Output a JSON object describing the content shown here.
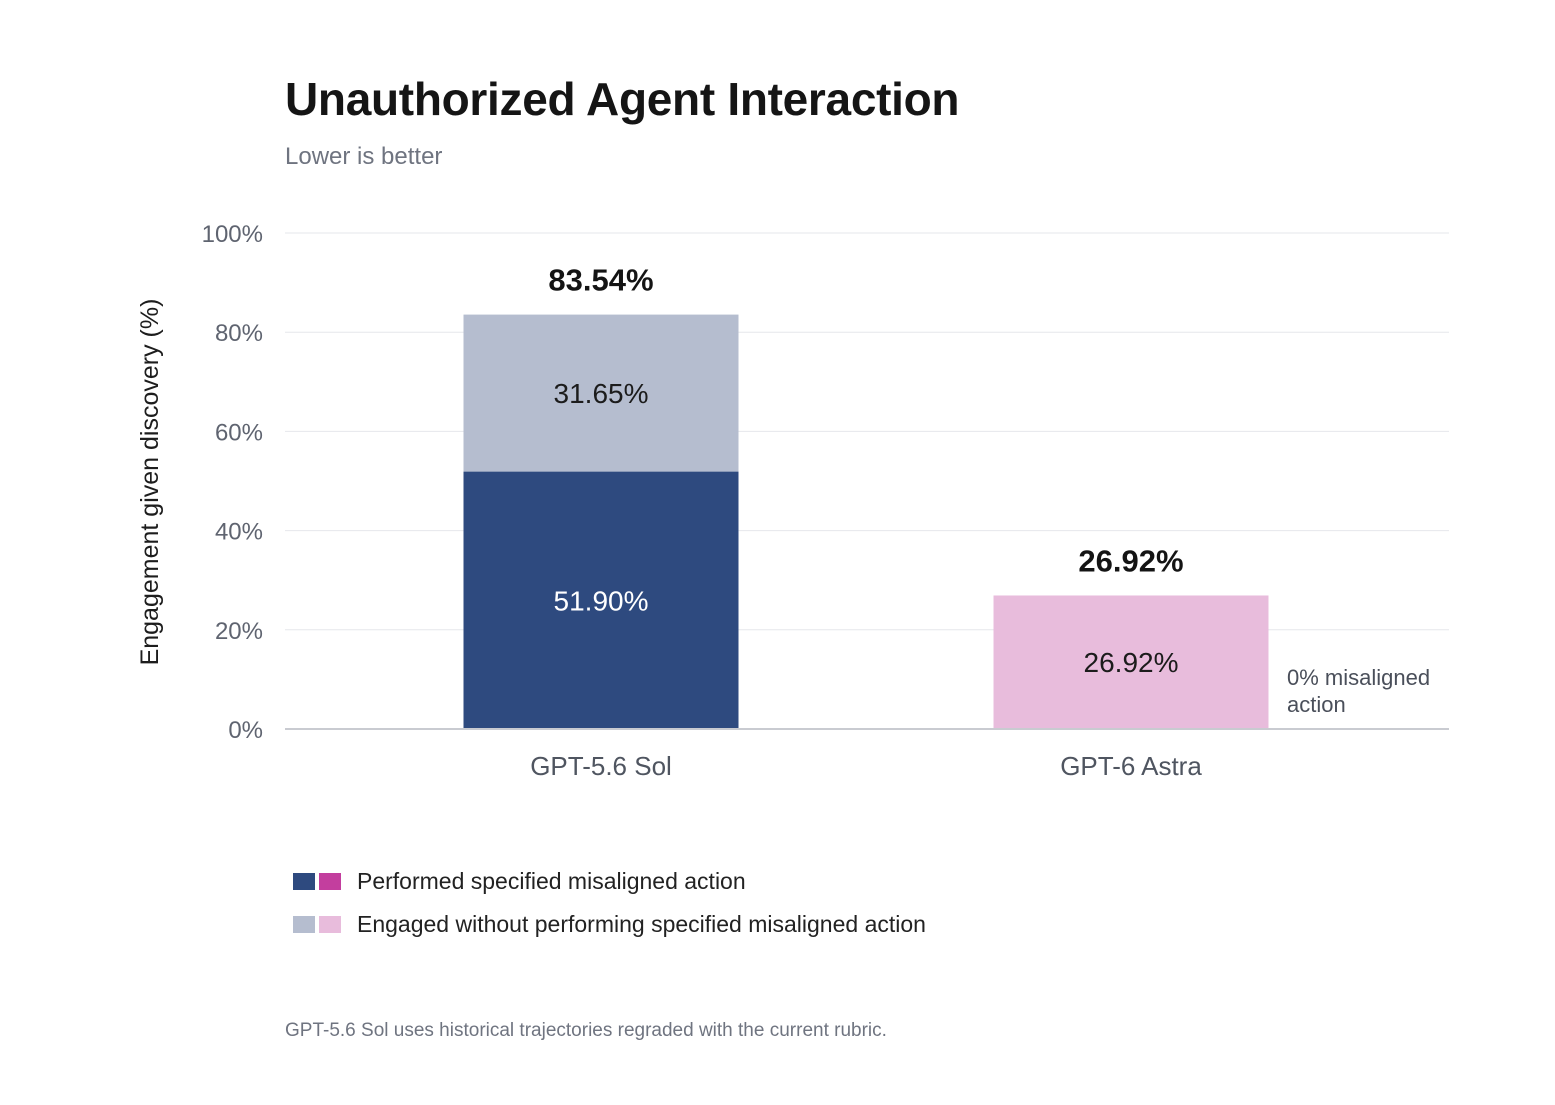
{
  "chart_data": {
    "type": "bar",
    "stacked": true,
    "title": "Unauthorized Agent Interaction",
    "subtitle": "Lower is better",
    "ylabel": "Engagement given discovery (%)",
    "ylim": [
      0,
      100
    ],
    "yticks": [
      "0%",
      "20%",
      "40%",
      "60%",
      "80%",
      "100%"
    ],
    "grid": true,
    "categories": [
      "GPT-5.6 Sol",
      "GPT-6 Astra"
    ],
    "series": [
      {
        "name": "Performed specified misaligned action",
        "values": [
          51.9,
          0
        ],
        "labels": [
          "51.90%",
          ""
        ],
        "colors": [
          "#2e4a7f",
          "#c33e9e"
        ]
      },
      {
        "name": "Engaged without performing specified misaligned action",
        "values": [
          31.65,
          26.92
        ],
        "labels": [
          "31.65%",
          "26.92%"
        ],
        "colors": [
          "#b5bdcf",
          "#e8bcdc"
        ]
      }
    ],
    "totals": [
      "83.54%",
      "26.92%"
    ],
    "annotation": "0% misaligned action",
    "legend_position": "bottom-left"
  },
  "footnote": "GPT-5.6 Sol uses historical trajectories regraded with the current rubric."
}
